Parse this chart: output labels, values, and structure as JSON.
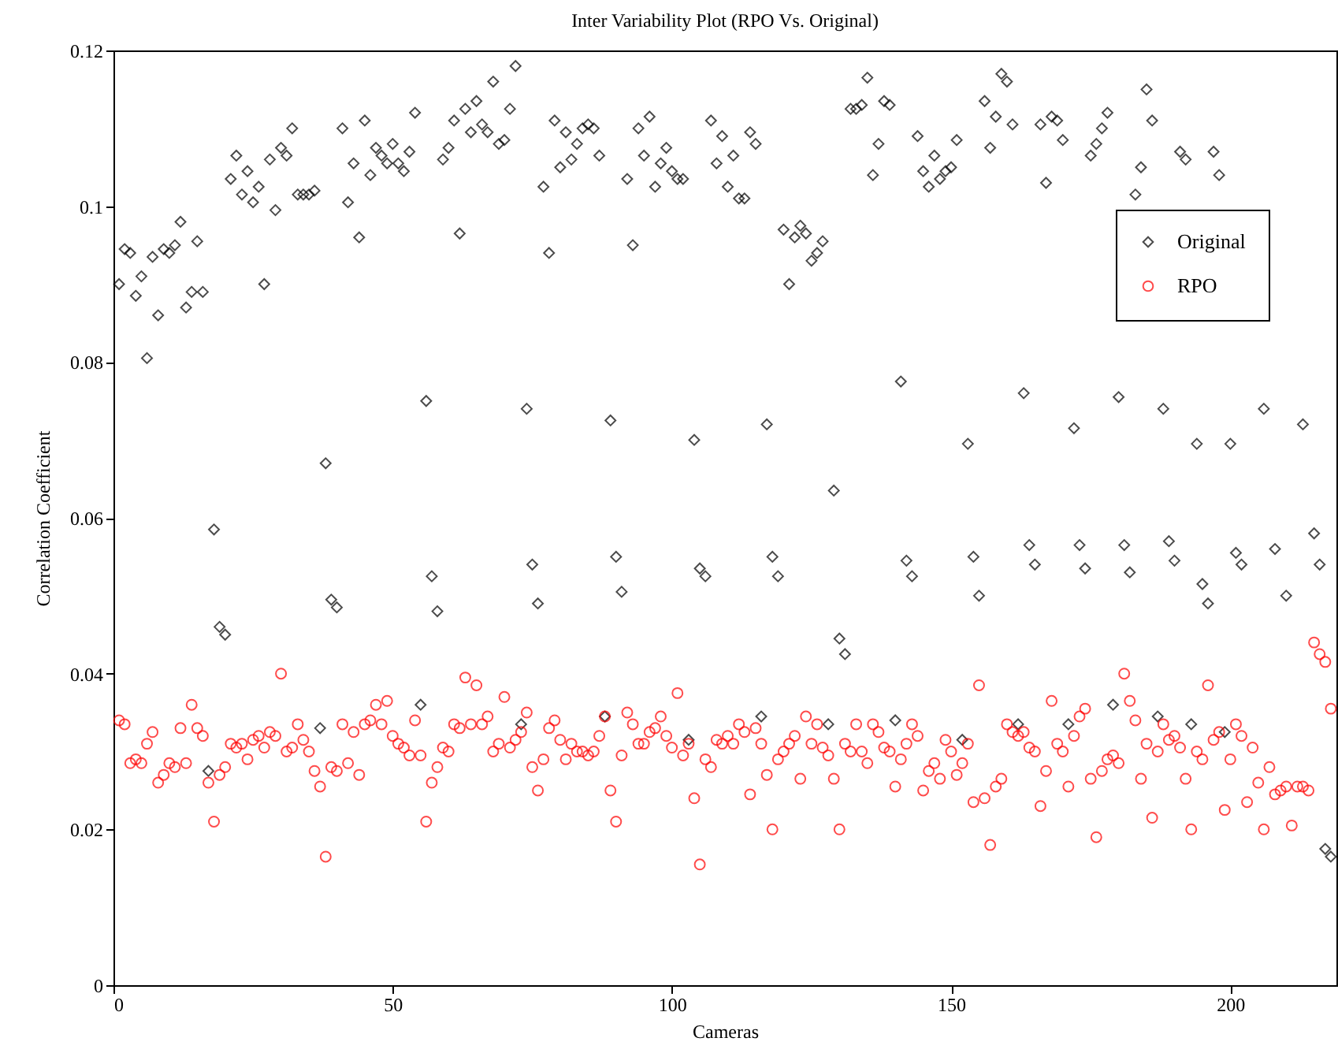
{
  "chart_data": {
    "type": "scatter",
    "title": "Inter Variability Plot (RPO Vs. Original)",
    "xlabel": "Cameras",
    "ylabel": "Correlation Coefficient",
    "x": [
      1,
      2,
      3,
      4,
      5,
      6,
      7,
      8,
      9,
      10,
      11,
      12,
      13,
      14,
      15,
      16,
      17,
      18,
      19,
      20,
      21,
      22,
      23,
      24,
      25,
      26,
      27,
      28,
      29,
      30,
      31,
      32,
      33,
      34,
      35,
      36,
      37,
      38,
      39,
      40,
      41,
      42,
      43,
      44,
      45,
      46,
      47,
      48,
      49,
      50,
      51,
      52,
      53,
      54,
      55,
      56,
      57,
      58,
      59,
      60,
      61,
      62,
      63,
      64,
      65,
      66,
      67,
      68,
      69,
      70,
      71,
      72,
      73,
      74,
      75,
      76,
      77,
      78,
      79,
      80,
      81,
      82,
      83,
      84,
      85,
      86,
      87,
      88,
      89,
      90,
      91,
      92,
      93,
      94,
      95,
      96,
      97,
      98,
      99,
      100,
      101,
      102,
      103,
      104,
      105,
      106,
      107,
      108,
      109,
      110,
      111,
      112,
      113,
      114,
      115,
      116,
      117,
      118,
      119,
      120,
      121,
      122,
      123,
      124,
      125,
      126,
      127,
      128,
      129,
      130,
      131,
      132,
      133,
      134,
      135,
      136,
      137,
      138,
      139,
      140,
      141,
      142,
      143,
      144,
      145,
      146,
      147,
      148,
      149,
      150,
      151,
      152,
      153,
      154,
      155,
      156,
      157,
      158,
      159,
      160,
      161,
      162,
      163,
      164,
      165,
      166,
      167,
      168,
      169,
      170,
      171,
      172,
      173,
      174,
      175,
      176,
      177,
      178,
      179,
      180,
      181,
      182,
      183,
      184,
      185,
      186,
      187,
      188,
      189,
      190,
      191,
      192,
      193,
      194,
      195,
      196,
      197,
      198,
      199,
      200,
      201,
      202,
      203,
      204,
      205,
      206,
      207,
      208,
      209,
      210,
      211,
      212,
      213,
      214,
      215,
      216,
      217,
      218
    ],
    "series": [
      {
        "name": "Original",
        "color": "#000000",
        "marker": "diamond",
        "x": [
          1,
          2,
          3,
          4,
          5,
          6,
          7,
          8,
          9,
          10,
          11,
          12,
          13,
          14,
          15,
          16,
          17,
          18,
          19,
          20,
          21,
          22,
          23,
          24,
          25,
          26,
          27,
          28,
          29,
          30,
          31,
          32,
          33,
          34,
          35,
          36,
          37,
          38,
          39,
          40,
          41,
          42,
          43,
          44,
          45,
          46,
          47,
          48,
          49,
          50,
          51,
          52,
          53,
          54,
          55,
          56,
          57,
          58,
          59,
          60,
          61,
          62,
          63,
          64,
          65,
          66,
          67,
          68,
          69,
          70,
          71,
          72,
          73,
          74,
          75,
          76,
          77,
          78,
          79,
          80,
          81,
          82,
          83,
          84,
          85,
          86,
          87,
          88,
          89,
          90,
          91,
          92,
          93,
          94,
          95,
          96,
          97,
          98,
          99,
          100,
          101,
          102,
          103,
          104,
          105,
          106,
          107,
          108,
          109,
          110,
          111,
          112,
          113,
          114,
          115,
          116,
          117,
          118,
          119,
          120,
          121,
          122,
          123,
          124,
          125,
          126,
          127,
          128,
          129,
          130,
          131,
          132,
          133,
          134,
          135,
          136,
          137,
          138,
          139,
          140,
          141,
          142,
          143,
          144,
          145,
          146,
          147,
          148,
          149,
          150,
          151,
          152,
          153,
          154,
          155,
          156,
          157,
          158,
          159,
          160,
          161,
          162,
          163,
          164,
          165,
          166,
          167,
          168,
          169,
          170,
          171,
          172,
          173,
          174,
          175,
          176,
          177,
          178,
          179,
          180,
          181,
          182,
          183,
          184,
          185,
          186,
          187,
          188,
          189,
          190,
          191,
          192,
          193,
          194,
          195,
          196,
          197,
          198,
          199,
          200,
          201,
          202,
          206,
          208,
          210,
          213,
          215,
          216,
          217,
          218
        ],
        "values": [
          0.09,
          0.0945,
          0.094,
          0.0885,
          0.091,
          0.0805,
          0.0935,
          0.086,
          0.0945,
          0.094,
          0.095,
          0.098,
          0.087,
          0.089,
          0.0955,
          0.089,
          0.0275,
          0.0585,
          0.046,
          0.045,
          0.1035,
          0.1065,
          0.1015,
          0.1045,
          0.1005,
          0.1025,
          0.09,
          0.106,
          0.0995,
          0.1075,
          0.1065,
          0.11,
          0.1015,
          0.1015,
          0.1015,
          0.102,
          0.033,
          0.067,
          0.0495,
          0.0485,
          0.11,
          0.1005,
          0.1055,
          0.096,
          0.111,
          0.104,
          0.1075,
          0.1065,
          0.1055,
          0.108,
          0.1055,
          0.1045,
          0.107,
          0.112,
          0.036,
          0.075,
          0.0525,
          0.048,
          0.106,
          0.1075,
          0.111,
          0.0965,
          0.1125,
          0.1095,
          0.1135,
          0.1105,
          0.1095,
          0.116,
          0.108,
          0.1085,
          0.1125,
          0.118,
          0.0335,
          0.074,
          0.054,
          0.049,
          0.1025,
          0.094,
          0.111,
          0.105,
          0.1095,
          0.106,
          0.108,
          0.11,
          0.1105,
          0.11,
          0.1065,
          0.0345,
          0.0725,
          0.055,
          0.0505,
          0.1035,
          0.095,
          0.11,
          0.1065,
          0.1115,
          0.1025,
          0.1055,
          0.1075,
          0.1045,
          0.1035,
          0.1035,
          0.0315,
          0.07,
          0.0535,
          0.0525,
          0.111,
          0.1055,
          0.109,
          0.1025,
          0.1065,
          0.101,
          0.101,
          0.1095,
          0.108,
          0.0345,
          0.072,
          0.055,
          0.0525,
          0.097,
          0.09,
          0.096,
          0.0975,
          0.0965,
          0.093,
          0.094,
          0.0955,
          0.0335,
          0.0635,
          0.0445,
          0.0425,
          0.1125,
          0.1125,
          0.113,
          0.1165,
          0.104,
          0.108,
          0.1135,
          0.113,
          0.034,
          0.0775,
          0.0545,
          0.0525,
          0.109,
          0.1045,
          0.1025,
          0.1065,
          0.1035,
          0.1045,
          0.105,
          0.1085,
          0.0315,
          0.0695,
          0.055,
          0.05,
          0.1135,
          0.1075,
          0.1115,
          0.117,
          0.116,
          0.1105,
          0.0335,
          0.076,
          0.0565,
          0.054,
          0.1105,
          0.103,
          0.1115,
          0.111,
          0.1085,
          0.0335,
          0.0715,
          0.0565,
          0.0535,
          0.1065,
          0.108,
          0.11,
          0.112,
          0.036,
          0.0755,
          0.0565,
          0.053,
          0.1015,
          0.105,
          0.115,
          0.111,
          0.0345,
          0.074,
          0.057,
          0.0545,
          0.107,
          0.106,
          0.0335,
          0.0695,
          0.0515,
          0.049,
          0.107,
          0.104,
          0.0325,
          0.0695,
          0.0555,
          0.054,
          0.074,
          0.056,
          0.05,
          0.072,
          0.058,
          0.054,
          0.0175,
          0.0165
        ]
      },
      {
        "name": "RPO",
        "color": "#ff0000",
        "marker": "circle",
        "values": [
          0.034,
          0.0335,
          0.0285,
          0.029,
          0.0285,
          0.031,
          0.0325,
          0.026,
          0.027,
          0.0285,
          0.028,
          0.033,
          0.0285,
          0.036,
          0.033,
          0.032,
          0.026,
          0.021,
          0.027,
          0.028,
          0.031,
          0.0305,
          0.031,
          0.029,
          0.0315,
          0.032,
          0.0305,
          0.0325,
          0.032,
          0.04,
          0.03,
          0.0305,
          0.0335,
          0.0315,
          0.03,
          0.0275,
          0.0255,
          0.0165,
          0.028,
          0.0275,
          0.0335,
          0.0285,
          0.0325,
          0.027,
          0.0335,
          0.034,
          0.036,
          0.0335,
          0.0365,
          0.032,
          0.031,
          0.0305,
          0.0295,
          0.034,
          0.0295,
          0.021,
          0.026,
          0.028,
          0.0305,
          0.03,
          0.0335,
          0.033,
          0.0395,
          0.0335,
          0.0385,
          0.0335,
          0.0345,
          0.03,
          0.031,
          0.037,
          0.0305,
          0.0315,
          0.0325,
          0.035,
          0.028,
          0.025,
          0.029,
          0.033,
          0.034,
          0.0315,
          0.029,
          0.031,
          0.03,
          0.03,
          0.0295,
          0.03,
          0.032,
          0.0345,
          0.025,
          0.021,
          0.0295,
          0.035,
          0.0335,
          0.031,
          0.031,
          0.0325,
          0.033,
          0.0345,
          0.032,
          0.0305,
          0.0375,
          0.0295,
          0.031,
          0.024,
          0.0155,
          0.029,
          0.028,
          0.0315,
          0.031,
          0.032,
          0.031,
          0.0335,
          0.0325,
          0.0245,
          0.033,
          0.031,
          0.027,
          0.02,
          0.029,
          0.03,
          0.031,
          0.032,
          0.0265,
          0.0345,
          0.031,
          0.0335,
          0.0305,
          0.0295,
          0.0265,
          0.02,
          0.031,
          0.03,
          0.0335,
          0.03,
          0.0285,
          0.0335,
          0.0325,
          0.0305,
          0.03,
          0.0255,
          0.029,
          0.031,
          0.0335,
          0.032,
          0.025,
          0.0275,
          0.0285,
          0.0265,
          0.0315,
          0.03,
          0.027,
          0.0285,
          0.031,
          0.0235,
          0.0385,
          0.024,
          0.018,
          0.0255,
          0.0265,
          0.0335,
          0.0325,
          0.032,
          0.0325,
          0.0305,
          0.03,
          0.023,
          0.0275,
          0.0365,
          0.031,
          0.03,
          0.0255,
          0.032,
          0.0345,
          0.0355,
          0.0265,
          0.019,
          0.0275,
          0.029,
          0.0295,
          0.0285,
          0.04,
          0.0365,
          0.034,
          0.0265,
          0.031,
          0.0215,
          0.03,
          0.0335,
          0.0315,
          0.032,
          0.0305,
          0.0265,
          0.02,
          0.03,
          0.029,
          0.0385,
          0.0315,
          0.0325,
          0.0225,
          0.029,
          0.0335,
          0.032,
          0.0235,
          0.0305,
          0.026,
          0.02,
          0.028,
          0.0245,
          0.025,
          0.0255,
          0.0205,
          0.0255,
          0.0255,
          0.025,
          0.044,
          0.0425,
          0.0415,
          0.0355
        ]
      }
    ],
    "xlim": [
      0,
      219
    ],
    "xticks": [
      0,
      50,
      100,
      150,
      200
    ],
    "ylim": [
      0,
      0.12
    ],
    "yticks": [
      0,
      0.02,
      0.04,
      0.06,
      0.08,
      0.1,
      0.12
    ],
    "grid": false,
    "legend": "top right"
  }
}
